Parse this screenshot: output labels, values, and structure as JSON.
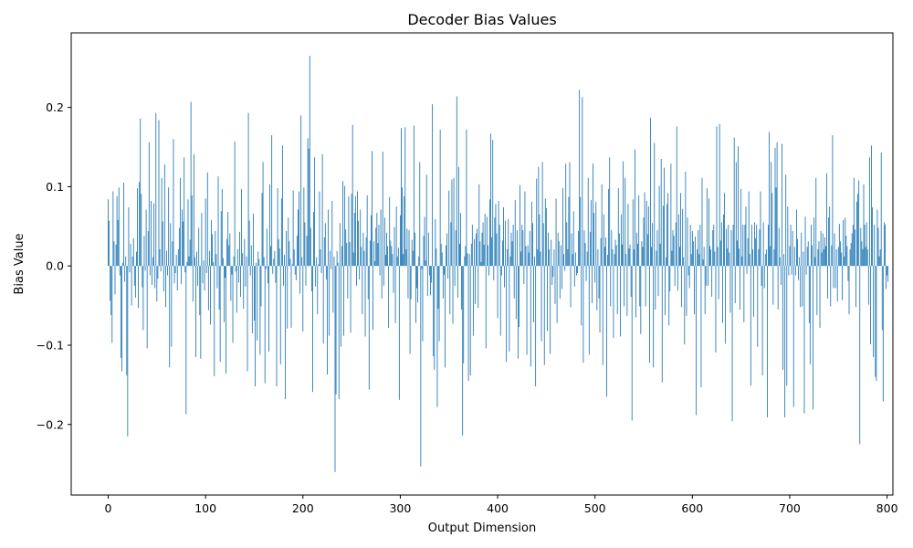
{
  "chart_data": {
    "type": "bar",
    "title": "Decoder Bias Values",
    "xlabel": "Output Dimension",
    "ylabel": "Bias Value",
    "xlim": [
      -38,
      806
    ],
    "ylim": [
      -0.289,
      0.294
    ],
    "xticks": [
      0,
      100,
      200,
      300,
      400,
      500,
      600,
      700,
      800
    ],
    "xtick_labels": [
      "0",
      "100",
      "200",
      "300",
      "400",
      "500",
      "600",
      "700",
      "800"
    ],
    "yticks": [
      -0.2,
      -0.1,
      0.0,
      0.1,
      0.2
    ],
    "ytick_labels": [
      "−0.2",
      "−0.1",
      "0.0",
      "0.1",
      "0.2"
    ],
    "grid": false,
    "bar_color": "#1f77b4",
    "x_start": 0,
    "values": [
      0.084,
      0.057,
      -0.044,
      -0.062,
      -0.097,
      0.094,
      0.031,
      -0.036,
      0.027,
      0.088,
      0.058,
      0.099,
      -0.012,
      -0.116,
      -0.133,
      0.004,
      0.105,
      -0.02,
      0.012,
      -0.138,
      -0.215,
      0.074,
      -0.008,
      0.028,
      -0.05,
      0.012,
      0.035,
      -0.025,
      -0.04,
      0.018,
      0.098,
      -0.053,
      0.106,
      0.186,
      0.091,
      -0.027,
      -0.081,
      0.038,
      -0.006,
      0.071,
      -0.104,
      0.044,
      0.156,
      -0.012,
      0.082,
      -0.024,
      0.011,
      0.079,
      -0.028,
      0.193,
      -0.045,
      -0.016,
      0.184,
      0.021,
      -0.007,
      0.111,
      0.056,
      -0.032,
      0.128,
      -0.052,
      0.019,
      -0.012,
      0.099,
      -0.128,
      0.054,
      -0.102,
      0.031,
      0.16,
      -0.022,
      -0.009,
      0.014,
      -0.031,
      0.021,
      0.048,
      0.111,
      -0.023,
      0.071,
      0.056,
      0.137,
      -0.008,
      -0.187,
      0.005,
      0.084,
      0.012,
      0.033,
      0.207,
      0.089,
      -0.045,
      0.141,
      0.011,
      -0.115,
      0.018,
      -0.025,
      0.048,
      -0.062,
      -0.117,
      0.067,
      -0.022,
      0.007,
      -0.031,
      0.085,
      -0.009,
      0.118,
      -0.056,
      0.019,
      -0.074,
      0.058,
      0.04,
      0.005,
      -0.139,
      0.044,
      0.015,
      -0.028,
      0.113,
      -0.055,
      -0.121,
      0.069,
      0.097,
      0.01,
      -0.071,
      -0.015,
      -0.136,
      0.034,
      0.068,
      0.026,
      0.041,
      -0.044,
      -0.011,
      -0.097,
      0.012,
      0.157,
      -0.007,
      -0.059,
      0.021,
      -0.021,
      0.043,
      -0.039,
      0.097,
      0.016,
      -0.054,
      0.034,
      -0.026,
      0.012,
      -0.133,
      0.193,
      0.057,
      -0.012,
      0.026,
      -0.085,
      0.066,
      -0.069,
      -0.152,
      0.004,
      -0.094,
      0.018,
      0.009,
      -0.112,
      -0.051,
      0.092,
      0.131,
      0.011,
      -0.148,
      -0.004,
      0.047,
      -0.022,
      -0.108,
      0.103,
      0.025,
      0.165,
      -0.01,
      0.009,
      0.019,
      -0.021,
      -0.152,
      0.098,
      0.034,
      0.022,
      -0.124,
      0.085,
      0.152,
      -0.025,
      0.014,
      -0.168,
      0.044,
      -0.079,
      0.061,
      0.031,
      0.009,
      -0.078,
      0.002,
      0.095,
      0.021,
      -0.011,
      -0.018,
      0.038,
      0.071,
      0.094,
      -0.035,
      0.19,
      0.011,
      -0.083,
      0.099,
      0.055,
      -0.025,
      0.038,
      0.161,
      0.148,
      0.265,
      0.048,
      -0.032,
      -0.159,
      0.068,
      0.137,
      -0.026,
      0.011,
      -0.061,
      0.002,
      0.094,
      0.021,
      -0.009,
      0.141,
      -0.098,
      0.036,
      0.054,
      -0.017,
      -0.137,
      0.071,
      -0.088,
      0.019,
      -0.004,
      0.082,
      -0.059,
      0.012,
      -0.26,
      -0.162,
      0.019,
      0.004,
      -0.168,
      0.054,
      -0.102,
      0.025,
      0.107,
      -0.088,
      0.101,
      0.046,
      0.029,
      -0.041,
      0.088,
      0.03,
      -0.084,
      0.091,
      0.178,
      0.017,
      0.067,
      0.088,
      -0.025,
      0.094,
      0.057,
      -0.017,
      0.071,
      0.024,
      -0.061,
      0.042,
      0.019,
      -0.089,
      0.036,
      0.089,
      -0.042,
      -0.156,
      0.032,
      0.064,
      0.145,
      -0.081,
      0.031,
      0.006,
      0.048,
      0.067,
      0.029,
      0.052,
      -0.012,
      0.071,
      -0.041,
      0.144,
      -0.025,
      0.061,
      0.014,
      0.042,
      0.025,
      -0.078,
      0.087,
      0.032,
      0.025,
      0.015,
      -0.034,
      0.049,
      -0.072,
      0.075,
      0.012,
      0.023,
      -0.169,
      0.064,
      0.174,
      0.099,
      0.015,
      0.088,
      0.175,
      0.021,
      0.047,
      -0.041,
      0.045,
      -0.111,
      -0.042,
      0.033,
      0.019,
      0.177,
      0.042,
      -0.072,
      -0.028,
      -0.046,
      0.012,
      0.131,
      -0.253,
      -0.004,
      -0.095,
      0.038,
      0.062,
      0.007,
      0.115,
      -0.038,
      0.042,
      -0.012,
      -0.037,
      -0.021,
      0.204,
      -0.114,
      -0.131,
      0.059,
      0.022,
      -0.178,
      -0.054,
      -0.095,
      0.172,
      0.028,
      0.017,
      -0.041,
      -0.011,
      -0.128,
      0.026,
      0.041,
      -0.016,
      0.095,
      -0.061,
      0.055,
      0.109,
      -0.073,
      0.111,
      -0.025,
      0.045,
      0.214,
      -0.04,
      0.125,
      0.028,
      0.067,
      -0.055,
      -0.214,
      -0.123,
      0.012,
      0.025,
      0.172,
      0.016,
      -0.145,
      0.015,
      -0.138,
      0.028,
      0.052,
      -0.088,
      0.034,
      -0.048,
      0.041,
      0.047,
      -0.053,
      0.103,
      0.031,
      0.005,
      0.042,
      0.055,
      0.027,
      0.066,
      -0.104,
      0.062,
      0.026,
      -0.012,
      0.084,
      0.167,
      0.036,
      0.159,
      -0.018,
      0.061,
      0.078,
      0.041,
      -0.066,
      0.082,
      0.052,
      -0.088,
      -0.012,
      0.032,
      0.074,
      -0.027,
      0.057,
      -0.121,
      0.021,
      0.059,
      -0.108,
      0.012,
      0.042,
      0.031,
      0.052,
      -0.041,
      0.083,
      -0.067,
      0.045,
      -0.117,
      -0.077,
      0.102,
      0.018,
      0.052,
      0.045,
      -0.023,
      0.094,
      0.025,
      -0.112,
      0.026,
      0.017,
      0.044,
      -0.127,
      0.081,
      0.054,
      -0.071,
      0.012,
      -0.152,
      0.11,
      0.021,
      0.125,
      0.065,
      0.018,
      -0.095,
      0.131,
      0.054,
      -0.125,
      0.085,
      0.073,
      -0.082,
      0.042,
      0.021,
      -0.111,
      0.033,
      -0.024,
      -0.014,
      0.021,
      -0.048,
      0.085,
      -0.072,
      0.042,
      0.031,
      -0.041,
      0.026,
      -0.029,
      0.098,
      0.015,
      -0.006,
      0.129,
      0.055,
      0.021,
      0.087,
      0.131,
      -0.052,
      0.041,
      0.015,
      0.069,
      -0.026,
      0.017,
      -0.012,
      -0.009,
      0.044,
      0.222,
      0.087,
      -0.075,
      0.213,
      -0.122,
      0.045,
      0.029,
      -0.019,
      0.018,
      0.111,
      -0.112,
      0.043,
      0.083,
      -0.047,
      0.129,
      0.067,
      -0.021,
      0.081,
      -0.056,
      0.021,
      -0.041,
      -0.084,
      0.035,
      0.103,
      -0.125,
      0.065,
      0.024,
      0.036,
      -0.165,
      0.014,
      0.097,
      0.137,
      -0.051,
      0.045,
      0.021,
      -0.091,
      0.015,
      0.033,
      0.026,
      -0.061,
      0.098,
      0.041,
      -0.089,
      0.065,
      0.027,
      0.132,
      -0.051,
      0.111,
      0.015,
      -0.063,
      0.078,
      0.022,
      0.027,
      -0.039,
      -0.195,
      0.084,
      0.021,
      0.147,
      -0.065,
      0.042,
      0.028,
      0.089,
      -0.051,
      -0.086,
      0.031,
      0.024,
      0.061,
      0.093,
      -0.051,
      0.082,
      0.04,
      0.075,
      -0.122,
      0.187,
      0.024,
      0.054,
      -0.128,
      0.155,
      -0.055,
      0.019,
      0.045,
      -0.038,
      0.101,
      0.028,
      0.135,
      -0.147,
      0.076,
      0.124,
      -0.062,
      0.011,
      0.078,
      0.092,
      -0.075,
      -0.032,
      0.129,
      0.019,
      0.045,
      0.038,
      -0.025,
      0.055,
      0.176,
      -0.031,
      0.065,
      0.024,
      0.092,
      -0.052,
      0.072,
      0.011,
      -0.099,
      0.119,
      -0.063,
      0.061,
      -0.012,
      -0.028,
      0.052,
      0.015,
      0.044,
      0.031,
      -0.061,
      0.037,
      -0.188,
      0.021,
      0.045,
      0.015,
      0.052,
      -0.153,
      0.111,
      0.008,
      0.024,
      -0.061,
      -0.025,
      0.098,
      -0.025,
      0.085,
      0.025,
      0.021,
      -0.039,
      0.045,
      0.052,
      0.018,
      -0.109,
      0.176,
      0.024,
      -0.042,
      0.179,
      0.032,
      0.055,
      -0.072,
      0.065,
      0.092,
      -0.098,
      0.047,
      0.022,
      0.052,
      0.017,
      -0.059,
      0.045,
      -0.196,
      0.052,
      0.162,
      -0.047,
      0.131,
      0.032,
      0.151,
      0.022,
      -0.055,
      0.097,
      0.012,
      0.052,
      -0.071,
      0.052,
      0.075,
      -0.01,
      0.035,
      0.094,
      0.015,
      -0.151,
      0.052,
      0.021,
      -0.064,
      0.055,
      0.035,
      0.052,
      -0.102,
      0.021,
      0.046,
      0.094,
      -0.025,
      -0.138,
      0.055,
      -0.028,
      0.015,
      0.021,
      -0.191,
      0.052,
      0.169,
      0.025,
      0.131,
      0.092,
      -0.049,
      0.021,
      0.149,
      0.099,
      0.156,
      -0.055,
      0.048,
      0.011,
      -0.024,
      0.154,
      -0.131,
      0.015,
      -0.191,
      0.115,
      -0.151,
      0.075,
      -0.012,
      0.025,
      0.052,
      -0.011,
      0.044,
      -0.178,
      0.024,
      -0.012,
      0.071,
      0.034,
      -0.018,
      0.011,
      -0.052,
      0.042,
      -0.051,
      0.018,
      -0.186,
      0.062,
      -0.011,
      0.024,
      0.031,
      -0.072,
      -0.124,
      0.052,
      0.026,
      -0.181,
      0.061,
      0.011,
      0.111,
      -0.062,
      0.021,
      0.031,
      -0.078,
      0.044,
      0.017,
      0.041,
      0.021,
      0.036,
      0.025,
      0.117,
      -0.041,
      0.061,
      0.075,
      -0.051,
      0.026,
      0.165,
      -0.028,
      0.041,
      -0.028,
      0.021,
      -0.045,
      0.024,
      0.053,
      0.031,
      0.017,
      -0.043,
      0.058,
      0.012,
      0.061,
      0.038,
      0.025,
      -0.019,
      -0.061,
      0.021,
      0.029,
      0.041,
      0.052,
      0.111,
      0.046,
      -0.052,
      0.081,
      0.091,
      0.108,
      -0.225,
      0.048,
      0.031,
      0.021,
      0.103,
      0.052,
      0.024,
      0.055,
      0.021,
      -0.049,
      0.137,
      -0.099,
      0.152,
      0.074,
      -0.115,
      0.052,
      -0.14,
      -0.145,
      0.071,
      0.048,
      0.012,
      0.021,
      0.143,
      -0.081,
      -0.171,
      0.055,
      0.052,
      -0.029,
      -0.012,
      -0.02
    ]
  }
}
